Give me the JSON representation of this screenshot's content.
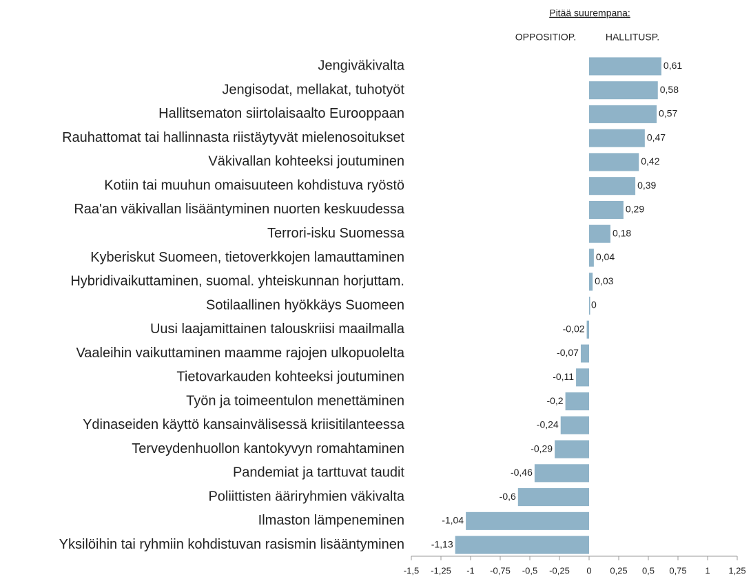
{
  "chart_data": {
    "type": "barh",
    "header": "Pitää suurempana:",
    "left_side_label": "OPPOSITIOP.",
    "right_side_label": "HALLITUSP.",
    "categories": [
      "Jengiväkivalta",
      "Jengisodat, mellakat, tuhotyöt",
      "Hallitsematon siirtolaisaalto Eurooppaan",
      "Rauhattomat tai hallinnasta riistäytyvät mielenosoitukset",
      "Väkivallan kohteeksi joutuminen",
      "Kotiin tai muuhun omaisuuteen kohdistuva ryöstö",
      "Raa'an väkivallan lisääntyminen nuorten keskuudessa",
      "Terrori-isku Suomessa",
      "Kyberiskut Suomeen, tietoverkkojen lamauttaminen",
      "Hybridivaikuttaminen, suomal. yhteiskunnan horjuttam.",
      "Sotilaallinen hyökkäys Suomeen",
      "Uusi laajamittainen talouskriisi maailmalla",
      "Vaaleihin vaikuttaminen maamme rajojen ulkopuolelta",
      "Tietovarkauden kohteeksi joutuminen",
      "Työn ja toimeentulon menettäminen",
      "Ydinaseiden käyttö kansainvälisessä kriisitilanteessa",
      "Terveydenhuollon kantokyvyn romahtaminen",
      "Pandemiat ja tarttuvat taudit",
      "Poliittisten ääriryhmien väkivalta",
      "Ilmaston lämpeneminen",
      "Yksilöihin tai ryhmiin kohdistuvan rasismin lisääntyminen"
    ],
    "values": [
      0.61,
      0.58,
      0.57,
      0.47,
      0.42,
      0.39,
      0.29,
      0.18,
      0.04,
      0.03,
      0,
      -0.02,
      -0.07,
      -0.11,
      -0.2,
      -0.24,
      -0.29,
      -0.46,
      -0.6,
      -1.04,
      -1.13
    ],
    "value_labels": [
      "0,61",
      "0,58",
      "0,57",
      "0,47",
      "0,42",
      "0,39",
      "0,29",
      "0,18",
      "0,04",
      "0,03",
      "0",
      "-0,02",
      "-0,07",
      "-0,11",
      "-0,2",
      "-0,24",
      "-0,29",
      "-0,46",
      "-0,6",
      "-1,04",
      "-1,13"
    ],
    "color": "#8fb3c8",
    "xlim": [
      -1.5,
      1.25
    ],
    "xticks": [
      {
        "value": -1.5,
        "label": "-1,5"
      },
      {
        "value": -1.25,
        "label": "-1,25"
      },
      -1,
      {
        "value": -0.75,
        "label": "-0,75"
      },
      {
        "value": -0.5,
        "label": "-0,5"
      },
      {
        "value": -0.25,
        "label": "-0,25"
      },
      0,
      {
        "value": 0.25,
        "label": "0,25"
      },
      {
        "value": 0.5,
        "label": "0,5"
      },
      {
        "value": 0.75,
        "label": "0,75"
      },
      1,
      {
        "value": 1.25,
        "label": "1,25"
      }
    ],
    "grid": false
  }
}
